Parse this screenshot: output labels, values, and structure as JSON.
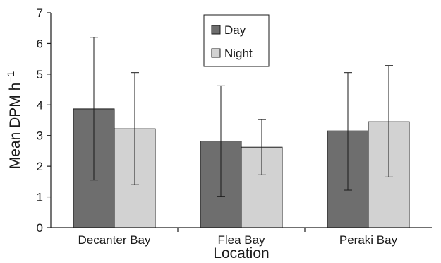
{
  "chart_data": {
    "type": "bar",
    "xlabel": "Location",
    "ylabel": "Mean DPM h",
    "ylabel_superscript": "−1",
    "ylim": [
      0,
      7
    ],
    "yticks": [
      0,
      1,
      2,
      3,
      4,
      5,
      6,
      7
    ],
    "grid": false,
    "legend_position": "top-center",
    "categories": [
      "Decanter Bay",
      "Flea Bay",
      "Peraki Bay"
    ],
    "series": [
      {
        "name": "Day",
        "color": "#6e6e6e",
        "values": [
          3.87,
          2.82,
          3.15
        ],
        "err_low": [
          1.55,
          1.02,
          1.22
        ],
        "err_high": [
          6.2,
          4.62,
          5.05
        ]
      },
      {
        "name": "Night",
        "color": "#d2d2d2",
        "values": [
          3.22,
          2.62,
          3.45
        ],
        "err_low": [
          1.4,
          1.72,
          1.65
        ],
        "err_high": [
          5.05,
          3.52,
          5.28
        ]
      }
    ]
  }
}
